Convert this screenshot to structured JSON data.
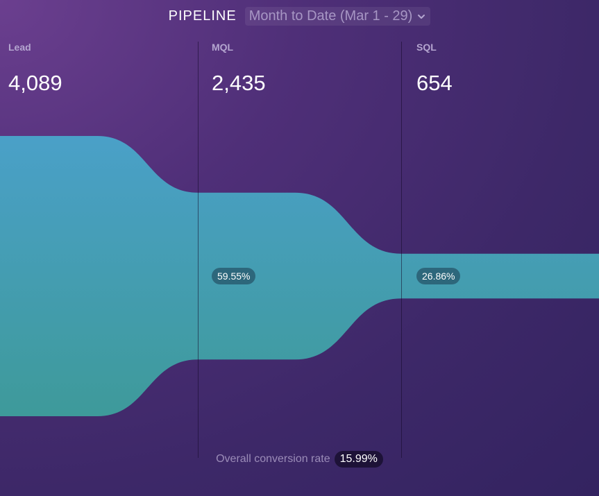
{
  "header": {
    "title": "PIPELINE",
    "period": "Month to Date (Mar 1 - 29)"
  },
  "icons": {
    "period_dropdown": "chevron-down-icon"
  },
  "colors": {
    "funnel_top": "#4aa0c8",
    "funnel_bottom": "#3e9a9a",
    "background": "#4a2e76"
  },
  "chart_data": {
    "type": "funnel",
    "title": "PIPELINE",
    "stages": [
      {
        "name": "Lead",
        "value": "4,089",
        "count": 4089
      },
      {
        "name": "MQL",
        "value": "2,435",
        "count": 2435,
        "conversion": "59.55%"
      },
      {
        "name": "SQL",
        "value": "654",
        "count": 654,
        "conversion": "26.86%"
      }
    ],
    "overall_conversion_label": "Overall conversion rate",
    "overall_conversion": "15.99%"
  }
}
